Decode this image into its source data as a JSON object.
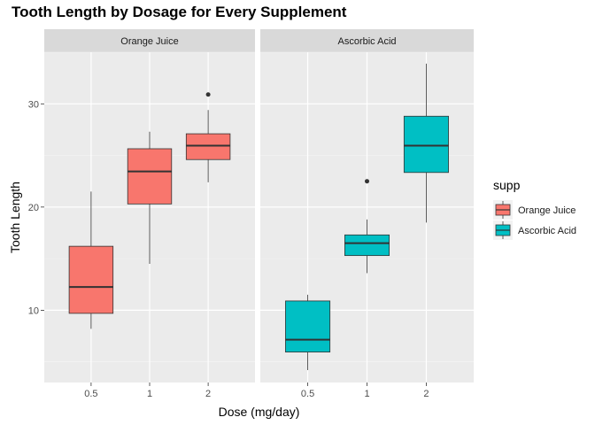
{
  "chart_data": {
    "type": "boxplot",
    "title": "Tooth Length by Dosage for Every Supplement",
    "xlabel": "Dose (mg/day)",
    "ylabel": "Tooth Length",
    "ylim": [
      3,
      35
    ],
    "yticks": [
      10,
      20,
      30
    ],
    "grid": true,
    "categories": [
      "0.5",
      "1",
      "2"
    ],
    "legend": {
      "title": "supp",
      "position": "right",
      "entries": [
        {
          "label": "Orange Juice",
          "color": "#f8766d"
        },
        {
          "label": "Ascorbic Acid",
          "color": "#00bfc4"
        }
      ]
    },
    "facets": [
      {
        "label": "Orange Juice",
        "color": "#f8766d",
        "boxes": [
          {
            "x": "0.5",
            "min": 8.2,
            "q1": 9.7,
            "median": 12.25,
            "q3": 16.2,
            "max": 21.5,
            "outliers": []
          },
          {
            "x": "1",
            "min": 14.5,
            "q1": 20.3,
            "median": 23.45,
            "q3": 25.65,
            "max": 27.3,
            "outliers": []
          },
          {
            "x": "2",
            "min": 22.4,
            "q1": 24.6,
            "median": 25.95,
            "q3": 27.1,
            "max": 29.4,
            "outliers": [
              30.9
            ]
          }
        ]
      },
      {
        "label": "Ascorbic Acid",
        "color": "#00bfc4",
        "boxes": [
          {
            "x": "0.5",
            "min": 4.2,
            "q1": 5.95,
            "median": 7.15,
            "q3": 10.9,
            "max": 11.5,
            "outliers": []
          },
          {
            "x": "1",
            "min": 13.6,
            "q1": 15.3,
            "median": 16.5,
            "q3": 17.3,
            "max": 18.8,
            "outliers": [
              22.5
            ]
          },
          {
            "x": "2",
            "min": 18.5,
            "q1": 23.35,
            "median": 25.95,
            "q3": 28.8,
            "max": 33.9,
            "outliers": []
          }
        ]
      }
    ]
  }
}
